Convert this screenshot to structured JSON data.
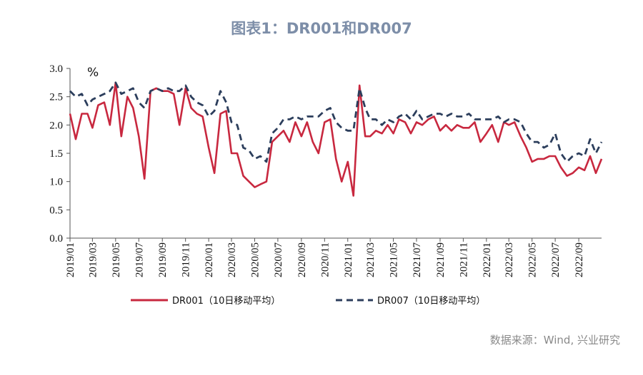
{
  "title": "图表1：DR001和DR007",
  "source": "数据来源：Wind, 兴业研究",
  "chart_data": {
    "type": "line",
    "title": "图表1：DR001和DR007",
    "ylabel": "%",
    "ylim": [
      0,
      3.0
    ],
    "yticks": [
      "0.0",
      "0.5",
      "1.0",
      "1.5",
      "2.0",
      "2.5",
      "3.0"
    ],
    "xlim": [
      "2019-01-01",
      "2022-10-31"
    ],
    "xticks": [
      "2019/01",
      "2019/03",
      "2019/05",
      "2019/07",
      "2019/09",
      "2019/11",
      "2020/01",
      "2020/03",
      "2020/05",
      "2020/07",
      "2020/09",
      "2020/11",
      "2021/01",
      "2021/03",
      "2021/05",
      "2021/07",
      "2021/09",
      "2021/11",
      "2022/01",
      "2022/03",
      "2022/05",
      "2022/07",
      "2022/09"
    ],
    "legend": "bottom",
    "grid": false,
    "x": [
      "2019-01-01",
      "2019-01-16",
      "2019-02-01",
      "2019-02-16",
      "2019-03-01",
      "2019-03-16",
      "2019-04-01",
      "2019-04-16",
      "2019-05-01",
      "2019-05-16",
      "2019-06-01",
      "2019-06-16",
      "2019-07-01",
      "2019-07-16",
      "2019-08-01",
      "2019-08-16",
      "2019-09-01",
      "2019-09-16",
      "2019-10-01",
      "2019-10-16",
      "2019-11-01",
      "2019-11-16",
      "2019-12-01",
      "2019-12-16",
      "2020-01-01",
      "2020-01-16",
      "2020-02-01",
      "2020-02-16",
      "2020-03-01",
      "2020-03-16",
      "2020-04-01",
      "2020-04-16",
      "2020-05-01",
      "2020-05-16",
      "2020-06-01",
      "2020-06-16",
      "2020-07-01",
      "2020-07-16",
      "2020-08-01",
      "2020-08-16",
      "2020-09-01",
      "2020-09-16",
      "2020-10-01",
      "2020-10-16",
      "2020-11-01",
      "2020-11-16",
      "2020-12-01",
      "2020-12-16",
      "2021-01-01",
      "2021-01-16",
      "2021-02-01",
      "2021-02-16",
      "2021-03-01",
      "2021-03-16",
      "2021-04-01",
      "2021-04-16",
      "2021-05-01",
      "2021-05-16",
      "2021-06-01",
      "2021-06-16",
      "2021-07-01",
      "2021-07-16",
      "2021-08-01",
      "2021-08-16",
      "2021-09-01",
      "2021-09-16",
      "2021-10-01",
      "2021-10-16",
      "2021-11-01",
      "2021-11-16",
      "2021-12-01",
      "2021-12-16",
      "2022-01-01",
      "2022-01-16",
      "2022-02-01",
      "2022-02-16",
      "2022-03-01",
      "2022-03-16",
      "2022-04-01",
      "2022-04-16",
      "2022-05-01",
      "2022-05-16",
      "2022-06-01",
      "2022-06-16",
      "2022-07-01",
      "2022-07-16",
      "2022-08-01",
      "2022-08-16",
      "2022-09-01",
      "2022-09-16",
      "2022-10-01",
      "2022-10-16",
      "2022-10-31"
    ],
    "series": [
      {
        "name": "DR001（10日移动平均）",
        "color": "#c8283f",
        "style": "solid",
        "values": [
          2.2,
          1.75,
          2.2,
          2.2,
          1.95,
          2.35,
          2.4,
          2.0,
          2.75,
          1.8,
          2.5,
          2.3,
          1.8,
          1.05,
          2.6,
          2.65,
          2.6,
          2.6,
          2.55,
          2.0,
          2.65,
          2.3,
          2.2,
          2.15,
          1.6,
          1.15,
          2.2,
          2.25,
          1.5,
          1.5,
          1.1,
          1.0,
          0.9,
          0.95,
          1.0,
          1.7,
          1.8,
          1.9,
          1.7,
          2.05,
          1.8,
          2.05,
          1.7,
          1.5,
          2.05,
          2.1,
          1.4,
          1.0,
          1.35,
          0.75,
          2.7,
          1.8,
          1.8,
          1.9,
          1.85,
          2.0,
          1.85,
          2.1,
          2.05,
          1.85,
          2.05,
          2.0,
          2.1,
          2.15,
          1.9,
          2.0,
          1.9,
          2.0,
          1.95,
          1.95,
          2.05,
          1.7,
          1.85,
          2.0,
          1.7,
          2.05,
          2.0,
          2.05,
          1.8,
          1.6,
          1.35,
          1.4,
          1.4,
          1.45,
          1.45,
          1.25,
          1.1,
          1.15,
          1.25,
          1.2,
          1.45,
          1.15,
          1.4
        ]
      },
      {
        "name": "DR007（10日移动平均）",
        "color": "#2c3e5c",
        "style": "dashed",
        "values": [
          2.6,
          2.5,
          2.55,
          2.35,
          2.45,
          2.5,
          2.55,
          2.6,
          2.75,
          2.55,
          2.6,
          2.65,
          2.4,
          2.3,
          2.6,
          2.65,
          2.6,
          2.65,
          2.6,
          2.6,
          2.7,
          2.5,
          2.4,
          2.35,
          2.15,
          2.25,
          2.6,
          2.4,
          2.05,
          2.0,
          1.6,
          1.55,
          1.4,
          1.45,
          1.35,
          1.85,
          1.95,
          2.1,
          2.1,
          2.15,
          2.1,
          2.15,
          2.15,
          2.15,
          2.25,
          2.3,
          2.05,
          1.95,
          1.9,
          1.9,
          2.65,
          2.3,
          2.1,
          2.1,
          2.0,
          2.1,
          2.05,
          2.15,
          2.2,
          2.1,
          2.25,
          2.1,
          2.15,
          2.2,
          2.2,
          2.15,
          2.2,
          2.15,
          2.15,
          2.2,
          2.1,
          2.1,
          2.1,
          2.1,
          2.15,
          2.05,
          2.1,
          2.1,
          2.05,
          1.85,
          1.7,
          1.7,
          1.6,
          1.65,
          1.85,
          1.5,
          1.35,
          1.45,
          1.5,
          1.45,
          1.75,
          1.5,
          1.7
        ]
      }
    ]
  }
}
